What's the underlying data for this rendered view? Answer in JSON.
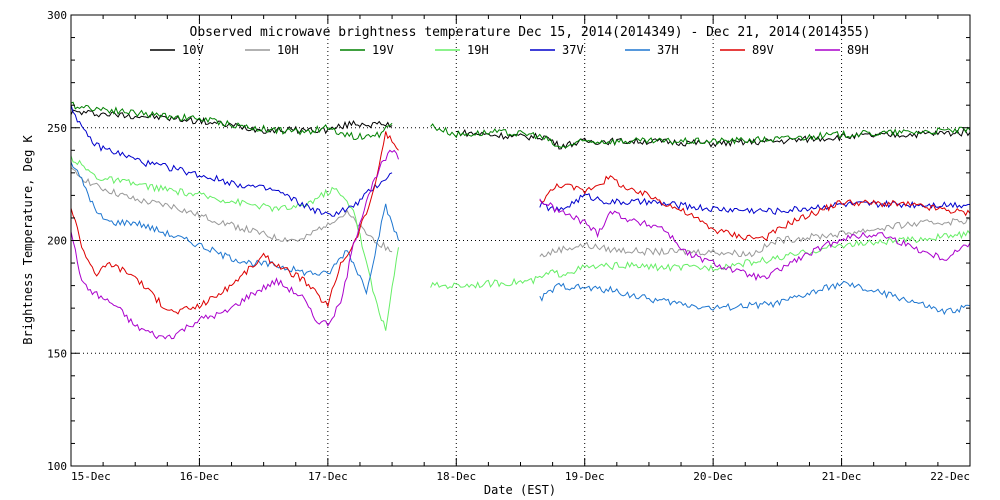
{
  "chart_data": {
    "type": "line",
    "title": "Observed microwave brightness temperature Dec 15, 2014(2014349) - Dec 21, 2014(2014355)",
    "xlabel": "Date (EST)",
    "ylabel": "Brightness Temperature, Deg K",
    "xlim": [
      0,
      7
    ],
    "ylim": [
      100,
      300
    ],
    "y_ticks": [
      100,
      150,
      200,
      250,
      300
    ],
    "x_ticks": [
      {
        "value": 0,
        "label": "15-Dec"
      },
      {
        "value": 1,
        "label": "16-Dec"
      },
      {
        "value": 2,
        "label": "17-Dec"
      },
      {
        "value": 3,
        "label": "18-Dec"
      },
      {
        "value": 4,
        "label": "19-Dec"
      },
      {
        "value": 5,
        "label": "20-Dec"
      },
      {
        "value": 6,
        "label": "21-Dec"
      },
      {
        "value": 7,
        "label": "22-Dec"
      }
    ],
    "grid": true,
    "legend_position": "top",
    "x_unit": "days since 15-Dec",
    "series": [
      {
        "name": "10V",
        "color": "#000000",
        "segments": [
          {
            "x": [
              0,
              0.3,
              0.6,
              1.0,
              1.5,
              2.0,
              2.2,
              2.5
            ],
            "y": [
              257,
              256,
              255,
              253,
              249,
              249,
              252,
              251
            ]
          },
          {
            "x": [
              3.0,
              3.5,
              3.7,
              3.8,
              4.0,
              4.5,
              5.0,
              5.5,
              6.0,
              6.5,
              7.0
            ],
            "y": [
              248,
              246,
              246,
              242,
              244,
              244,
              243,
              244,
              246,
              247,
              248
            ]
          }
        ]
      },
      {
        "name": "10H",
        "color": "#999999",
        "segments": [
          {
            "x": [
              0,
              0.2,
              0.5,
              0.8,
              1.0,
              1.3,
              1.6,
              1.8,
              2.0,
              2.15,
              2.3,
              2.5
            ],
            "y": [
              231,
              224,
              218,
              215,
              211,
              206,
              201,
              200,
              208,
              212,
              203,
              195
            ]
          },
          {
            "x": [
              3.65,
              3.8,
              4.0,
              4.2,
              4.5,
              5.0,
              5.3,
              5.5,
              6.0,
              6.5,
              7.0
            ],
            "y": [
              193,
              196,
              198,
              196,
              195,
              195,
              194,
              200,
              203,
              207,
              209
            ]
          }
        ]
      },
      {
        "name": "19V",
        "color": "#008000",
        "segments": [
          {
            "x": [
              0,
              0.3,
              0.6,
              1.0,
              1.4,
              1.8,
              2.0,
              2.2,
              2.4,
              2.5
            ],
            "y": [
              260,
              258,
              256,
              254,
              250,
              248,
              250,
              246,
              247,
              252
            ]
          },
          {
            "x": [
              2.8,
              3.0,
              3.3,
              3.6,
              3.7,
              3.8,
              4.0,
              4.5,
              5.0,
              5.5,
              6.0,
              6.5,
              7.0
            ],
            "y": [
              251,
              247,
              248,
              247,
              245,
              241,
              244,
              244,
              244,
              245,
              247,
              248,
              249
            ]
          }
        ]
      },
      {
        "name": "19H",
        "color": "#66ee66",
        "segments": [
          {
            "x": [
              0,
              0.2,
              0.5,
              0.8,
              1.0,
              1.3,
              1.6,
              1.8,
              1.95,
              2.05,
              2.2,
              2.35,
              2.45,
              2.55
            ],
            "y": [
              237,
              228,
              225,
              222,
              220,
              217,
              214,
              215,
              220,
              223,
              214,
              178,
              160,
              197
            ]
          },
          {
            "x": [
              2.8,
              3.0,
              3.3,
              3.6,
              3.75,
              3.8,
              4.0,
              4.3,
              4.6,
              5.0,
              5.5,
              6.0,
              6.5,
              7.0
            ],
            "y": [
              180,
              180,
              181,
              182,
              186,
              185,
              188,
              189,
              188,
              188,
              192,
              198,
              200,
              203
            ]
          }
        ]
      },
      {
        "name": "37V",
        "color": "#0000cc",
        "segments": [
          {
            "x": [
              0,
              0.1,
              0.2,
              0.4,
              0.6,
              0.8,
              1.0,
              1.3,
              1.6,
              1.8,
              2.0,
              2.2,
              2.35,
              2.5
            ],
            "y": [
              260,
              248,
              242,
              238,
              234,
              232,
              229,
              225,
              222,
              216,
              211,
              215,
              223,
              230
            ]
          },
          {
            "x": [
              3.65,
              3.8,
              4.0,
              4.2,
              4.5,
              5.0,
              5.5,
              6.0,
              6.5,
              7.0
            ],
            "y": [
              216,
              213,
              220,
              217,
              217,
              214,
              213,
              216,
              216,
              216
            ]
          }
        ]
      },
      {
        "name": "37H",
        "color": "#1f77d0",
        "segments": [
          {
            "x": [
              0,
              0.1,
              0.2,
              0.3,
              0.5,
              0.7,
              0.9,
              1.0,
              1.2,
              1.4,
              1.6,
              1.8,
              2.0,
              2.15,
              2.3,
              2.45,
              2.55
            ],
            "y": [
              235,
              225,
              212,
              208,
              208,
              204,
              200,
              198,
              193,
              190,
              189,
              186,
              185,
              196,
              178,
              215,
              200
            ]
          },
          {
            "x": [
              3.65,
              3.8,
              4.0,
              4.2,
              4.5,
              5.0,
              5.5,
              6.0,
              6.5,
              6.8,
              7.0
            ],
            "y": [
              174,
              180,
              179,
              178,
              174,
              170,
              172,
              181,
              174,
              168,
              171
            ]
          }
        ]
      },
      {
        "name": "89V",
        "color": "#dd0000",
        "segments": [
          {
            "x": [
              0,
              0.1,
              0.2,
              0.3,
              0.5,
              0.7,
              0.8,
              1.0,
              1.2,
              1.4,
              1.5,
              1.7,
              1.8,
              2.0,
              2.1,
              2.2,
              2.35,
              2.45,
              2.55
            ],
            "y": [
              215,
              195,
              185,
              190,
              184,
              172,
              168,
              171,
              178,
              188,
              193,
              186,
              183,
              171,
              190,
              198,
              220,
              248,
              240
            ]
          },
          {
            "x": [
              3.65,
              3.8,
              4.0,
              4.2,
              4.35,
              4.5,
              4.8,
              5.0,
              5.2,
              5.4,
              5.6,
              6.0,
              6.5,
              7.0
            ],
            "y": [
              217,
              225,
              222,
              228,
              222,
              220,
              212,
              205,
              202,
              201,
              208,
              217,
              216,
              212
            ]
          }
        ]
      },
      {
        "name": "89H",
        "color": "#aa00cc",
        "segments": [
          {
            "x": [
              0,
              0.05,
              0.1,
              0.2,
              0.35,
              0.5,
              0.7,
              0.8,
              1.0,
              1.2,
              1.4,
              1.6,
              1.8,
              1.9,
              2.0,
              2.1,
              2.2,
              2.3,
              2.4,
              2.5,
              2.55
            ],
            "y": [
              205,
              190,
              180,
              176,
              171,
              162,
              157,
              158,
              165,
              168,
              176,
              182,
              175,
              165,
              163,
              172,
              198,
              218,
              232,
              240,
              236
            ]
          },
          {
            "x": [
              3.65,
              3.8,
              4.0,
              4.1,
              4.2,
              4.4,
              4.6,
              4.8,
              5.0,
              5.2,
              5.4,
              5.6,
              6.0,
              6.3,
              6.6,
              6.8,
              7.0
            ],
            "y": [
              218,
              213,
              208,
              203,
              213,
              208,
              206,
              194,
              190,
              186,
              183,
              190,
              201,
              203,
              196,
              192,
              199
            ]
          }
        ]
      }
    ]
  }
}
